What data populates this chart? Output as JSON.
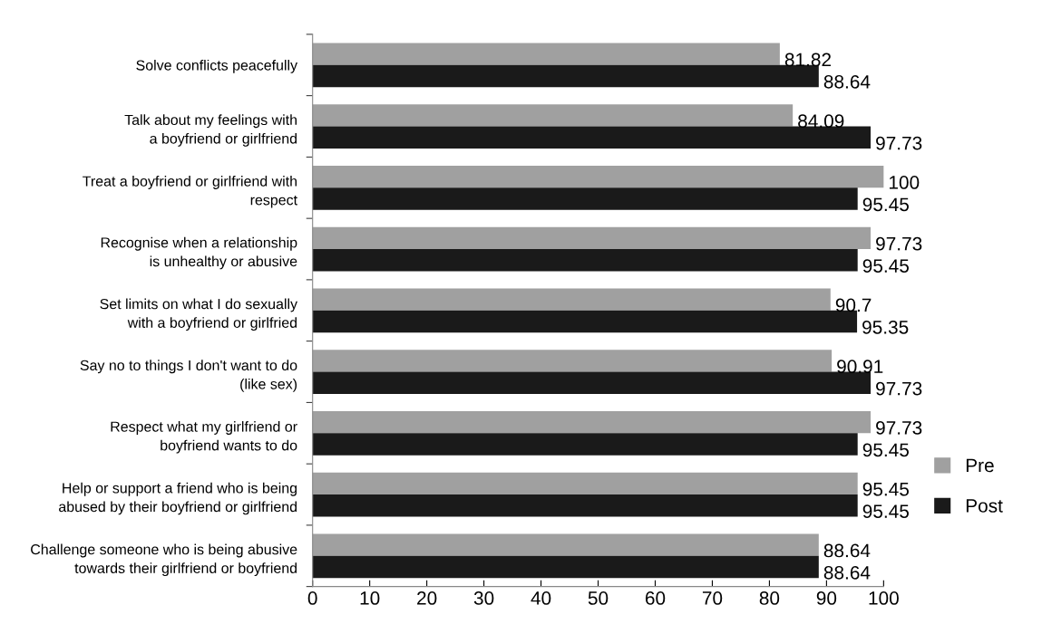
{
  "chart_data": {
    "type": "bar",
    "orientation": "horizontal",
    "categories": [
      "Solve conflicts peacefully",
      "Talk about my feelings with\na boyfriend or girlfriend",
      "Treat a boyfriend or girlfriend with\nrespect",
      "Recognise when a relationship\nis unhealthy or abusive",
      "Set limits on what I do sexually\nwith a boyfriend or girlfried",
      "Say no to things I don't want to do\n(like sex)",
      "Respect what my girlfriend or\nboyfriend wants to do",
      "Help or support a friend who is being\nabused by their boyfriend or girlfriend",
      "Challenge someone who is being abusive\ntowards their girlfriend or boyfriend"
    ],
    "series": [
      {
        "name": "Pre",
        "color": "#a0a0a0",
        "values": [
          81.82,
          84.09,
          100,
          97.73,
          90.7,
          90.91,
          97.73,
          95.45,
          88.64
        ]
      },
      {
        "name": "Post",
        "color": "#1a1a1a",
        "values": [
          88.64,
          97.73,
          95.45,
          95.45,
          95.35,
          97.73,
          95.45,
          95.45,
          88.64
        ]
      }
    ],
    "xlim": [
      0,
      100
    ],
    "xticks": [
      0,
      10,
      20,
      30,
      40,
      50,
      60,
      70,
      80,
      90,
      100
    ],
    "data_labels": true,
    "legend": "right",
    "grid": false
  }
}
